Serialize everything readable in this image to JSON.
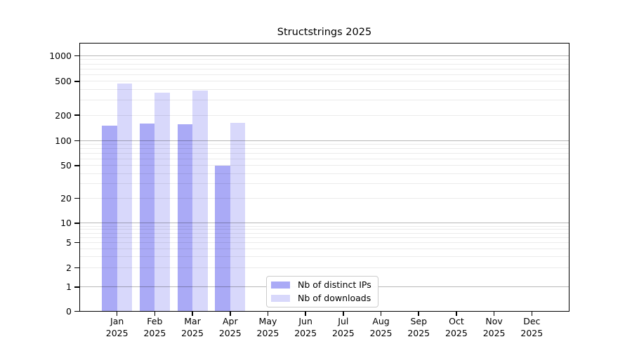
{
  "chart_data": {
    "type": "bar",
    "title": "Structstrings 2025",
    "categories": [
      "Jan",
      "Feb",
      "Mar",
      "Apr",
      "May",
      "Jun",
      "Jul",
      "Aug",
      "Sep",
      "Oct",
      "Nov",
      "Dec"
    ],
    "year_label": "2025",
    "series": [
      {
        "name": "Nb of distinct IPs",
        "color": "#aaaaf6",
        "values": [
          150,
          158,
          157,
          50,
          null,
          null,
          null,
          null,
          null,
          null,
          null,
          null
        ]
      },
      {
        "name": "Nb of downloads",
        "color": "#d8d8fb",
        "values": [
          470,
          370,
          390,
          162,
          null,
          null,
          null,
          null,
          null,
          null,
          null,
          null
        ]
      }
    ],
    "yscale": "symlog",
    "y_ticks": [
      0,
      1,
      2,
      5,
      10,
      20,
      50,
      100,
      200,
      500,
      1000
    ],
    "grid": {
      "minor_color": "rgba(0,0,0,0.08)",
      "major_color": "rgba(0,0,0,0.28)",
      "major_values": [
        1,
        10,
        100,
        1000
      ]
    },
    "legend_entries": [
      "Nb of distinct IPs",
      "Nb of downloads"
    ]
  }
}
